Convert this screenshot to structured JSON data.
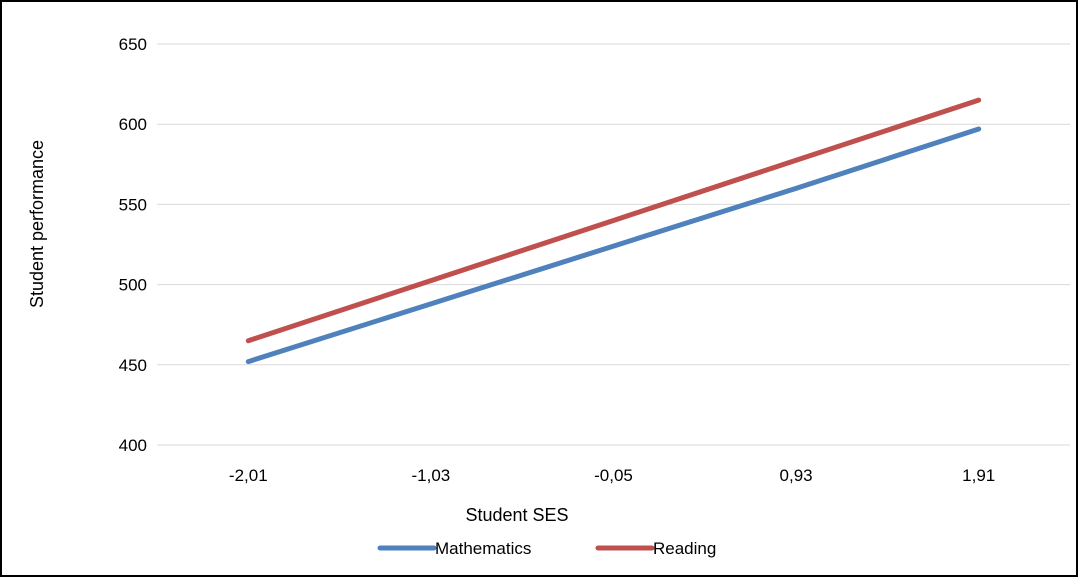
{
  "chart_data": {
    "type": "line",
    "title": "",
    "xlabel": "Student SES",
    "ylabel": "Student performance",
    "categories": [
      "-2,01",
      "-1,03",
      "-0,05",
      "0,93",
      "1,91"
    ],
    "x": [
      -2.01,
      -1.03,
      -0.05,
      0.93,
      1.91
    ],
    "ylim": [
      400,
      650
    ],
    "yticks": [
      400,
      450,
      500,
      550,
      600,
      650
    ],
    "grid": true,
    "legend": "bottom",
    "series": [
      {
        "name": "Mathematics",
        "color": "#4f81bd",
        "values": [
          452,
          488,
          524,
          560,
          597
        ]
      },
      {
        "name": "Reading",
        "color": "#c0504d",
        "values": [
          465,
          502.5,
          540,
          577.5,
          615
        ]
      }
    ]
  }
}
